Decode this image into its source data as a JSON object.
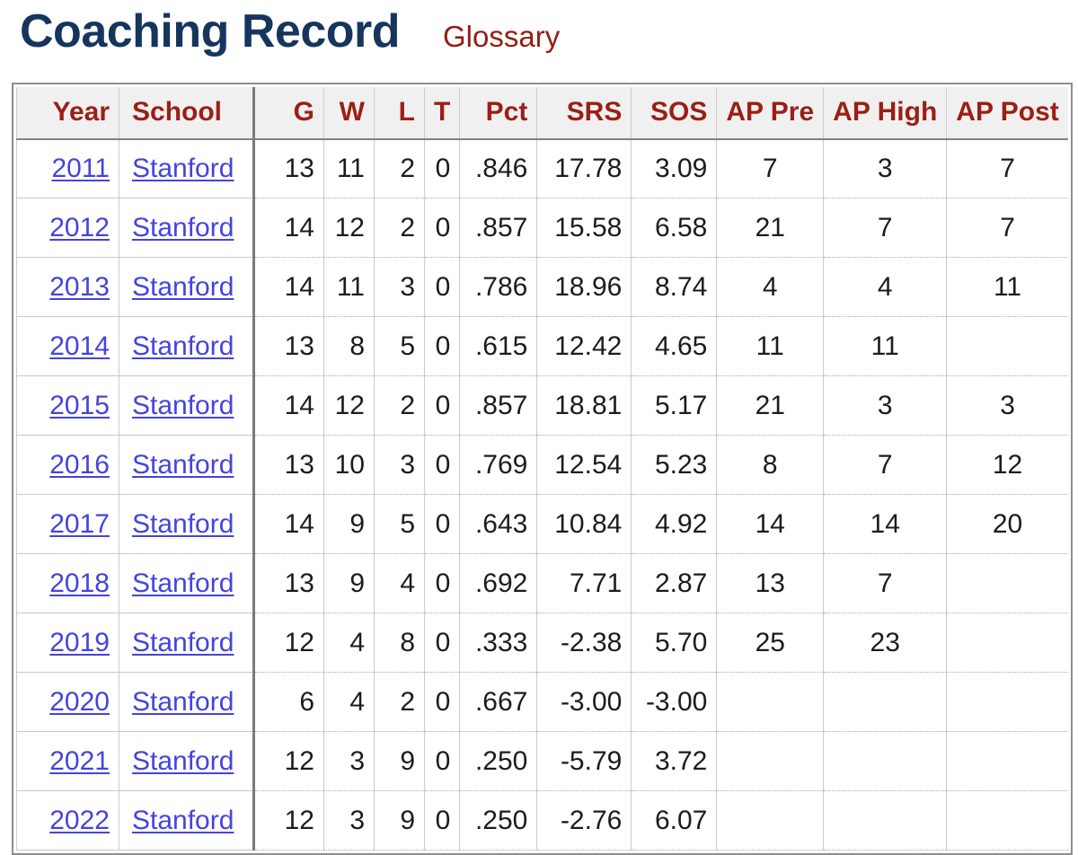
{
  "page": {
    "title": "Coaching Record",
    "glossary_label": "Glossary"
  },
  "colors": {
    "title_navy": "#16355e",
    "maroon_header": "#9a1f15",
    "glossary_maroon": "#941d12",
    "link_blue": "#4444dd",
    "header_bg": "#f0f0f0",
    "outer_border": "#8e8e8e",
    "text": "#1c1c1c"
  },
  "table": {
    "columns": [
      {
        "key": "year",
        "label": "Year",
        "align": "right"
      },
      {
        "key": "school",
        "label": "School",
        "align": "left"
      },
      {
        "key": "g",
        "label": "G",
        "align": "right"
      },
      {
        "key": "w",
        "label": "W",
        "align": "right"
      },
      {
        "key": "l",
        "label": "L",
        "align": "right"
      },
      {
        "key": "t",
        "label": "T",
        "align": "right"
      },
      {
        "key": "pct",
        "label": "Pct",
        "align": "right"
      },
      {
        "key": "srs",
        "label": "SRS",
        "align": "right"
      },
      {
        "key": "sos",
        "label": "SOS",
        "align": "right"
      },
      {
        "key": "ap_pre",
        "label": "AP Pre",
        "align": "center"
      },
      {
        "key": "ap_high",
        "label": "AP High",
        "align": "center"
      },
      {
        "key": "ap_post",
        "label": "AP Post",
        "align": "center"
      }
    ],
    "rows": [
      {
        "year": "2011",
        "school": "Stanford",
        "g": "13",
        "w": "11",
        "l": "2",
        "t": "0",
        "pct": ".846",
        "srs": "17.78",
        "sos": "3.09",
        "ap_pre": "7",
        "ap_high": "3",
        "ap_post": "7"
      },
      {
        "year": "2012",
        "school": "Stanford",
        "g": "14",
        "w": "12",
        "l": "2",
        "t": "0",
        "pct": ".857",
        "srs": "15.58",
        "sos": "6.58",
        "ap_pre": "21",
        "ap_high": "7",
        "ap_post": "7"
      },
      {
        "year": "2013",
        "school": "Stanford",
        "g": "14",
        "w": "11",
        "l": "3",
        "t": "0",
        "pct": ".786",
        "srs": "18.96",
        "sos": "8.74",
        "ap_pre": "4",
        "ap_high": "4",
        "ap_post": "11"
      },
      {
        "year": "2014",
        "school": "Stanford",
        "g": "13",
        "w": "8",
        "l": "5",
        "t": "0",
        "pct": ".615",
        "srs": "12.42",
        "sos": "4.65",
        "ap_pre": "11",
        "ap_high": "11",
        "ap_post": ""
      },
      {
        "year": "2015",
        "school": "Stanford",
        "g": "14",
        "w": "12",
        "l": "2",
        "t": "0",
        "pct": ".857",
        "srs": "18.81",
        "sos": "5.17",
        "ap_pre": "21",
        "ap_high": "3",
        "ap_post": "3"
      },
      {
        "year": "2016",
        "school": "Stanford",
        "g": "13",
        "w": "10",
        "l": "3",
        "t": "0",
        "pct": ".769",
        "srs": "12.54",
        "sos": "5.23",
        "ap_pre": "8",
        "ap_high": "7",
        "ap_post": "12"
      },
      {
        "year": "2017",
        "school": "Stanford",
        "g": "14",
        "w": "9",
        "l": "5",
        "t": "0",
        "pct": ".643",
        "srs": "10.84",
        "sos": "4.92",
        "ap_pre": "14",
        "ap_high": "14",
        "ap_post": "20"
      },
      {
        "year": "2018",
        "school": "Stanford",
        "g": "13",
        "w": "9",
        "l": "4",
        "t": "0",
        "pct": ".692",
        "srs": "7.71",
        "sos": "2.87",
        "ap_pre": "13",
        "ap_high": "7",
        "ap_post": ""
      },
      {
        "year": "2019",
        "school": "Stanford",
        "g": "12",
        "w": "4",
        "l": "8",
        "t": "0",
        "pct": ".333",
        "srs": "-2.38",
        "sos": "5.70",
        "ap_pre": "25",
        "ap_high": "23",
        "ap_post": ""
      },
      {
        "year": "2020",
        "school": "Stanford",
        "g": "6",
        "w": "4",
        "l": "2",
        "t": "0",
        "pct": ".667",
        "srs": "-3.00",
        "sos": "-3.00",
        "ap_pre": "",
        "ap_high": "",
        "ap_post": ""
      },
      {
        "year": "2021",
        "school": "Stanford",
        "g": "12",
        "w": "3",
        "l": "9",
        "t": "0",
        "pct": ".250",
        "srs": "-5.79",
        "sos": "3.72",
        "ap_pre": "",
        "ap_high": "",
        "ap_post": ""
      },
      {
        "year": "2022",
        "school": "Stanford",
        "g": "12",
        "w": "3",
        "l": "9",
        "t": "0",
        "pct": ".250",
        "srs": "-2.76",
        "sos": "6.07",
        "ap_pre": "",
        "ap_high": "",
        "ap_post": ""
      }
    ]
  }
}
